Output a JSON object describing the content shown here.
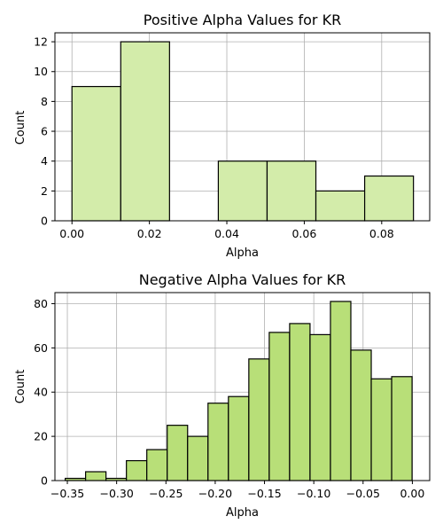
{
  "chart_data": [
    {
      "type": "histogram",
      "title": "Positive Alpha Values for KR",
      "xlabel": "Alpha",
      "ylabel": "Count",
      "xlim": [
        -0.0044,
        0.0924
      ],
      "ylim": [
        0,
        12.6
      ],
      "xticks": [
        0.0,
        0.02,
        0.04,
        0.06,
        0.08
      ],
      "xtick_labels": [
        "0.00",
        "0.02",
        "0.04",
        "0.06",
        "0.08"
      ],
      "yticks": [
        0,
        2,
        4,
        6,
        8,
        10,
        12
      ],
      "ytick_labels": [
        "0",
        "2",
        "4",
        "6",
        "8",
        "10",
        "12"
      ],
      "bin_edges": [
        0.0,
        0.0126,
        0.0252,
        0.0378,
        0.0504,
        0.063,
        0.0756,
        0.0882
      ],
      "values": [
        9,
        12,
        0,
        4,
        4,
        2,
        3
      ],
      "color": "#d3ecaa",
      "grid": true
    },
    {
      "type": "histogram",
      "title": "Negative Alpha Values for KR",
      "xlabel": "Alpha",
      "ylabel": "Count",
      "xlim": [
        -0.3626,
        0.0176
      ],
      "ylim": [
        0,
        85
      ],
      "xticks": [
        -0.35,
        -0.3,
        -0.25,
        -0.2,
        -0.15,
        -0.1,
        -0.05,
        0.0
      ],
      "xtick_labels": [
        "−0.35",
        "−0.30",
        "−0.25",
        "−0.20",
        "−0.15",
        "−0.10",
        "−0.05",
        "0.00"
      ],
      "yticks": [
        0,
        20,
        40,
        60,
        80
      ],
      "ytick_labels": [
        "0",
        "20",
        "40",
        "60",
        "80"
      ],
      "bin_edges": [
        -0.3522,
        -0.3315,
        -0.3108,
        -0.2901,
        -0.2694,
        -0.2487,
        -0.228,
        -0.2073,
        -0.1866,
        -0.1659,
        -0.1452,
        -0.1245,
        -0.1038,
        -0.0831,
        -0.0624,
        -0.0417,
        -0.021,
        -0.0003
      ],
      "values": [
        1,
        4,
        1,
        9,
        14,
        25,
        20,
        35,
        38,
        55,
        67,
        71,
        66,
        81,
        59,
        46,
        47
      ],
      "color": "#b8df78",
      "grid": true
    }
  ]
}
